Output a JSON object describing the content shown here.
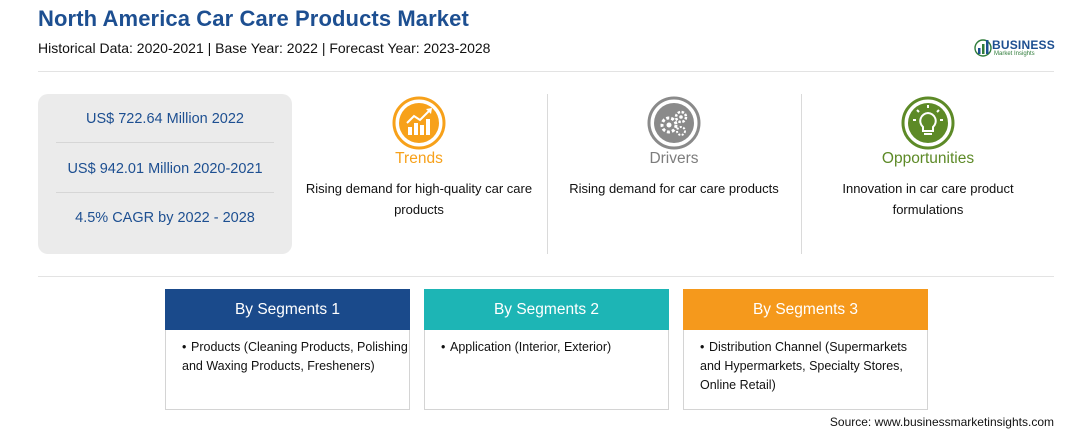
{
  "header": {
    "title": "North America Car Care Products Market",
    "subtitle": "Historical Data: 2020-2021 | Base Year: 2022 | Forecast Year: 2023-2028"
  },
  "logo": {
    "name": "BUSINESS",
    "tagline": "Market Insights",
    "icon": "bar-chart-globe-icon"
  },
  "stats": [
    "US$ 722.64 Million 2022",
    "US$ 942.01 Million 2020-2021",
    "4.5% CAGR by 2022 - 2028"
  ],
  "factors": {
    "trends": {
      "title": "Trends",
      "text": "Rising demand for high-quality car care products",
      "icon": "trend-chart-icon",
      "color": "#f7a11a"
    },
    "drivers": {
      "title": "Drivers",
      "text": "Rising demand for car care products",
      "icon": "gears-icon",
      "color": "#7d7d7d"
    },
    "opportunities": {
      "title": "Opportunities",
      "text": "Innovation in car care product formulations",
      "icon": "lightbulb-icon",
      "color": "#5d8a27"
    }
  },
  "segments": [
    {
      "title": "By Segments 1",
      "color": "#1a4a8b",
      "bullet": "Products (Cleaning Products, Polishing and Waxing Products, Fresheners)"
    },
    {
      "title": "By Segments 2",
      "color": "#1db5b5",
      "bullet": "Application (Interior, Exterior)"
    },
    {
      "title": "By Segments 3",
      "color": "#f5991c",
      "bullet": "Distribution Channel (Supermarkets and Hypermarkets, Specialty Stores, Online Retail)"
    }
  ],
  "source": "Source: www.businessmarketinsights.com"
}
